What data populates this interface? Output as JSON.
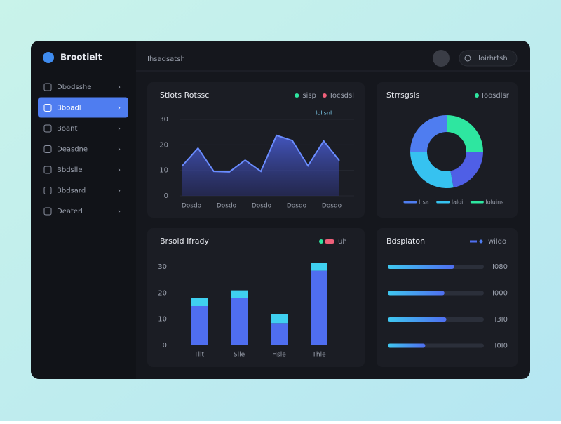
{
  "app": {
    "brand": "Brootielt",
    "header": "Ihsadsatsh",
    "button": "Ioirhrtsh"
  },
  "sidebar": {
    "items": [
      "Dbodsshe",
      "Bboadl",
      "Boant",
      "Deasdne",
      "Bbdslle",
      "Bbdsard",
      "Deaterl"
    ],
    "active": 1
  },
  "panels": {
    "trend": {
      "type": "area",
      "title": "Stiots Rotssc",
      "annotation": "Iollsnl",
      "legend": [
        {
          "name": "sisp",
          "color": "#2ee6a0"
        },
        {
          "name": "Iocsdsl",
          "color": "#f0607a"
        }
      ],
      "x_labels": [
        "Dosdo",
        "Dosdo",
        "Dosdo",
        "Dosdo",
        "Dosdo"
      ],
      "values": [
        11.8,
        18.7,
        9.6,
        9.4,
        14,
        9.6,
        23.7,
        21.7,
        11.8,
        21.5,
        13.8
      ],
      "ylim": [
        0,
        30
      ],
      "yticks": [
        0,
        10,
        20,
        30
      ],
      "color": "#5a78f0"
    },
    "share": {
      "type": "donut",
      "title": "Strrsgsis",
      "legend_title": "Ioosdlsr",
      "values": [
        25,
        22,
        28,
        25
      ],
      "colors": [
        "#2ee6a0",
        "#4f5fe6",
        "#36c2f0",
        "#4f7df0"
      ],
      "legend": [
        {
          "name": "Irsa",
          "color": "#4f7df0"
        },
        {
          "name": "Ialoi",
          "color": "#36c2f0"
        },
        {
          "name": "Ioluins",
          "color": "#2ee6a0"
        }
      ]
    },
    "volume": {
      "type": "stacked_bar",
      "title": "Brsoid Ifrady",
      "legend": "uh",
      "categories": [
        "Tllt",
        "Slle",
        "Hsle",
        "Thle"
      ],
      "series": [
        {
          "color": "#4f6ef0",
          "values": [
            15,
            18,
            8.5,
            28.5
          ]
        },
        {
          "color": "#3fd0f0",
          "values": [
            3,
            3,
            3.5,
            3
          ]
        }
      ],
      "ylim": [
        0,
        30
      ],
      "yticks": [
        0,
        10,
        20,
        30
      ]
    },
    "distribution": {
      "type": "progress",
      "title": "Bdsplaton",
      "legend": "Iwildo",
      "values": [
        69,
        59,
        61,
        39
      ],
      "labels": [
        "I080",
        "I000",
        "I3I0",
        "I0I0"
      ],
      "xlim": [
        0,
        100
      ]
    }
  }
}
